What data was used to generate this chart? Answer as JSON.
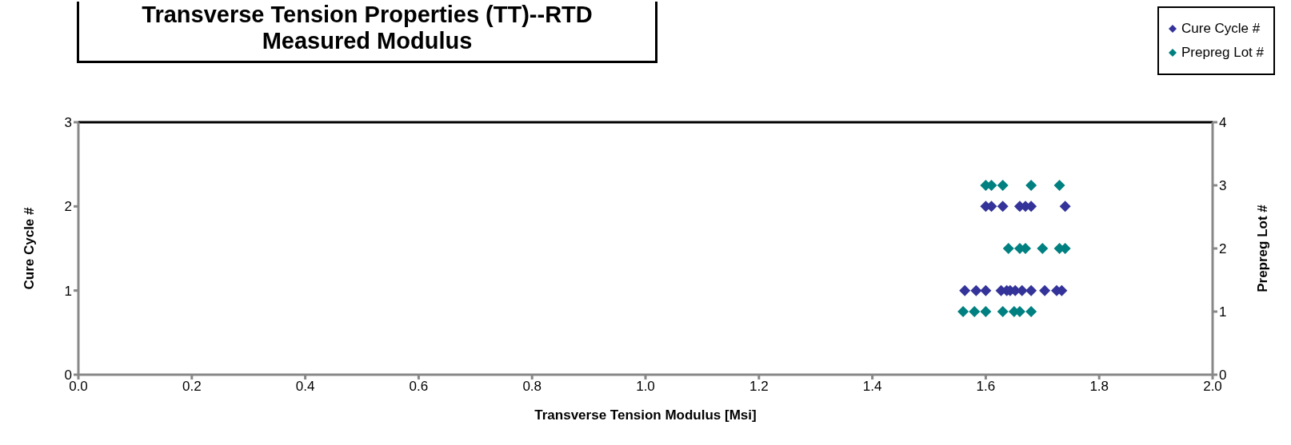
{
  "chart_data": {
    "type": "scatter",
    "title": "Transverse Tension Properties (TT)--RTD\nMeasured Modulus",
    "xlabel": "Transverse Tension Modulus [Msi]",
    "ylabel": "Cure Cycle #",
    "y2label": "Prepreg Lot #",
    "xlim": [
      0,
      2
    ],
    "xticks": [
      {
        "value": 0,
        "label": "0.0"
      },
      {
        "value": 0.2,
        "label": "0.2"
      },
      {
        "value": 0.4,
        "label": "0.4"
      },
      {
        "value": 0.6,
        "label": "0.6"
      },
      {
        "value": 0.8,
        "label": "0.8"
      },
      {
        "value": 1,
        "label": "1.0"
      },
      {
        "value": 1.2,
        "label": "1.2"
      },
      {
        "value": 1.4,
        "label": "1.4"
      },
      {
        "value": 1.6,
        "label": "1.6"
      },
      {
        "value": 1.8,
        "label": "1.8"
      },
      {
        "value": 2,
        "label": "2.0"
      }
    ],
    "ylim": [
      0,
      3
    ],
    "yticks": [
      0,
      1,
      2,
      3
    ],
    "y2lim": [
      0,
      4
    ],
    "y2ticks": [
      0,
      1,
      2,
      3,
      4
    ],
    "marker": "diamond",
    "grid": false,
    "legend": "top right",
    "series": [
      {
        "name": "Cure Cycle #",
        "color": "#333399",
        "x": [
          1.6,
          1.61,
          1.63,
          1.66,
          1.67,
          1.68,
          1.74,
          1.563,
          1.583,
          1.6,
          1.627,
          1.637,
          1.643,
          1.652,
          1.664,
          1.68,
          1.704,
          1.725,
          1.734
        ],
        "values": [
          2,
          2,
          2,
          2,
          2,
          2,
          2,
          1,
          1,
          1,
          1,
          1,
          1,
          1,
          1,
          1,
          1,
          1,
          1
        ]
      },
      {
        "name": "Prepreg Lot #",
        "color": "#008080",
        "axis": "y2",
        "x": [
          1.6,
          1.61,
          1.63,
          1.68,
          1.73,
          1.64,
          1.66,
          1.67,
          1.7,
          1.73,
          1.74,
          1.56,
          1.58,
          1.6,
          1.63,
          1.65,
          1.66,
          1.68
        ],
        "values": [
          3,
          3,
          3,
          3,
          3,
          2,
          2,
          2,
          2,
          2,
          2,
          1,
          1,
          1,
          1,
          1,
          1,
          1
        ]
      }
    ]
  }
}
